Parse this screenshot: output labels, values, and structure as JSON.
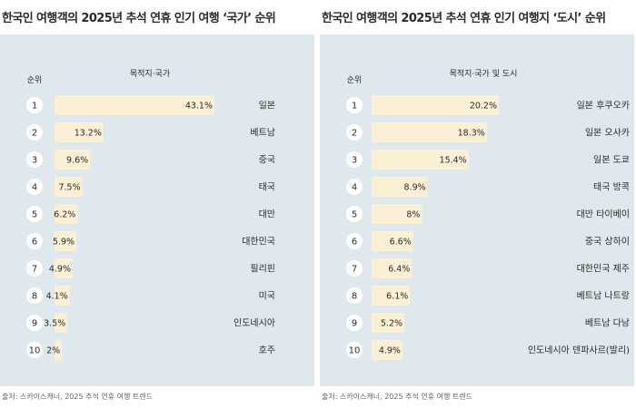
{
  "charts": {
    "0": {
      "title": "한국인 여행객의 2025년 추석 연휴 인기 여행 ‘국가’ 순위",
      "rank_header": "순위",
      "dest_header": "목적지·국가",
      "source": "출처: 스카이스캐너, 2025 추석 연휴 여행 트렌드"
    },
    "1": {
      "title": "한국인 여행객의 2025년 추석 연휴 인기 여행지 ‘도시’ 순위",
      "rank_header": "순위",
      "dest_header": "목적지·국가 및 도시",
      "source": "출처: 스카이스캐너, 2025 추석 연휴 여행 트렌드"
    }
  },
  "colors": {
    "panel_bg": "#dfe9ed",
    "bar": "#fbefd6",
    "circle": "#ffffff",
    "text": "#2b2b2b"
  },
  "chart_data": [
    {
      "type": "bar",
      "orientation": "horizontal",
      "title": "한국인 여행객의 2025년 추석 연휴 인기 여행 ‘국가’ 순위",
      "ranks": [
        "1",
        "2",
        "3",
        "4",
        "5",
        "6",
        "7",
        "8",
        "9",
        "10"
      ],
      "categories": [
        "일본",
        "베트남",
        "중국",
        "태국",
        "대만",
        "대한민국",
        "필리핀",
        "미국",
        "인도네시아",
        "호주"
      ],
      "values": [
        43.1,
        13.2,
        9.6,
        7.5,
        6.2,
        5.9,
        4.9,
        4.1,
        3.5,
        2
      ],
      "value_labels": [
        "43.1%",
        "13.2%",
        "9.6%",
        "7.5%",
        "6.2%",
        "5.9%",
        "4.9%",
        "4.1%",
        "3.5%",
        "2%"
      ],
      "xlim": [
        0,
        43.1
      ],
      "grid": false
    },
    {
      "type": "bar",
      "orientation": "horizontal",
      "title": "한국인 여행객의 2025년 추석 연휴 인기 여행지 ‘도시’ 순위",
      "ranks": [
        "1",
        "2",
        "3",
        "4",
        "5",
        "6",
        "7",
        "8",
        "9",
        "10"
      ],
      "categories": [
        "일본 후쿠오카",
        "일본 오사카",
        "일본 도쿄",
        "태국 방콕",
        "대만 타이베이",
        "중국 상하이",
        "대한민국 제주",
        "베트남 나트랑",
        "베트남 다낭",
        "인도네시아 덴파사르(발리)"
      ],
      "values": [
        20.2,
        18.3,
        15.4,
        8.9,
        8,
        6.6,
        6.4,
        6.1,
        5.2,
        4.9
      ],
      "value_labels": [
        "20.2%",
        "18.3%",
        "15.4%",
        "8.9%",
        "8%",
        "6.6%",
        "6.4%",
        "6.1%",
        "5.2%",
        "4.9%"
      ],
      "xlim": [
        0,
        20.2
      ],
      "grid": false
    }
  ]
}
